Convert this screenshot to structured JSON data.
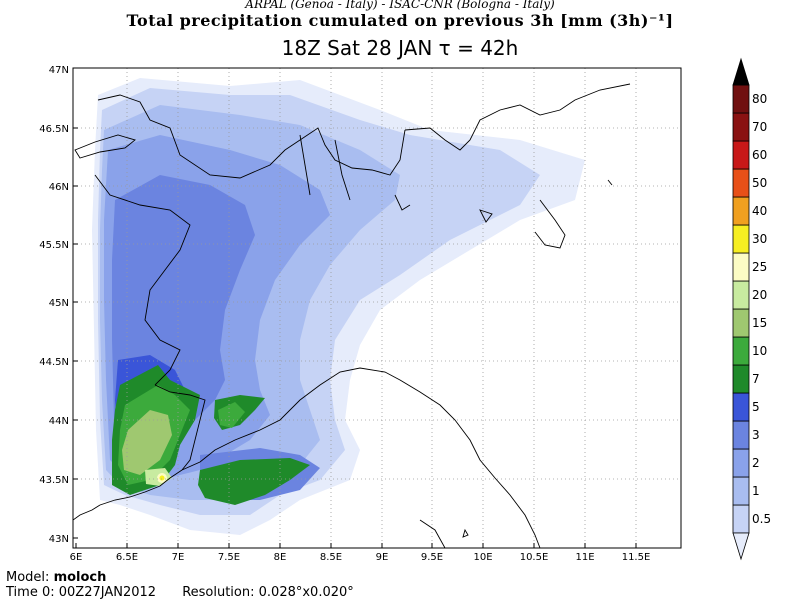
{
  "header": {
    "credits": "ARPAL (Genoa - Italy)  -  ISAC-CNR (Bologna - Italy)",
    "title": "Total precipitation cumulated on previous 3h [mm (3h)⁻¹]",
    "subtitle": "18Z Sat 28 JAN   τ = 42h"
  },
  "map": {
    "lat_labels": [
      "47N",
      "46.5N",
      "46N",
      "45.5N",
      "45N",
      "44.5N",
      "44N",
      "43.5N",
      "43N"
    ],
    "lon_labels": [
      "6E",
      "6.5E",
      "7E",
      "7.5E",
      "8E",
      "8.5E",
      "9E",
      "9.5E",
      "10E",
      "10.5E",
      "11E",
      "11.5E"
    ]
  },
  "colorbar": {
    "levels": [
      "0.5",
      "1",
      "2",
      "3",
      "5",
      "7",
      "10",
      "15",
      "20",
      "25",
      "30",
      "40",
      "50",
      "60",
      "70",
      "80"
    ],
    "colors": [
      "#e6ecfb",
      "#c6d3f5",
      "#a9bdf0",
      "#8aa2ea",
      "#6b84e0",
      "#3a55d8",
      "#1f8a2a",
      "#3caa3c",
      "#9fc870",
      "#c8eba0",
      "#fcfcc4",
      "#f6ee22",
      "#f0a020",
      "#e85018",
      "#c81818",
      "#8a1212",
      "#701010",
      "#000000"
    ]
  },
  "footer": {
    "model_label": "Model:",
    "model_value": "moloch",
    "time_label": "Time 0:",
    "time_value": "00Z27JAN2012",
    "resolution_label": "Resolution:",
    "resolution_value": "0.028°x0.020°"
  }
}
